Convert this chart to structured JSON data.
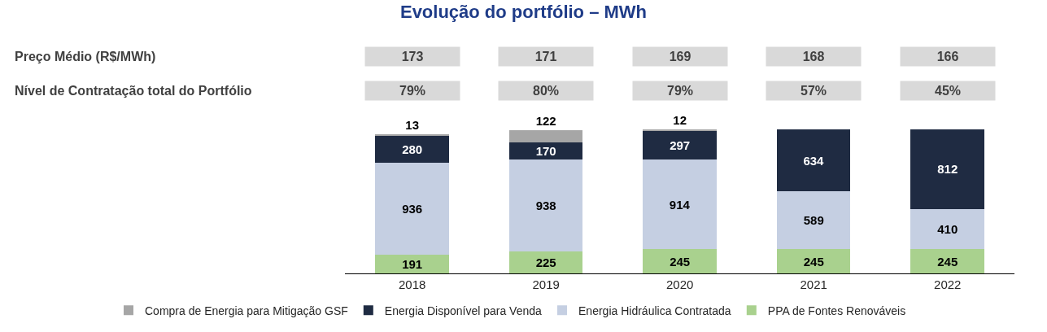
{
  "chart_data": {
    "type": "bar",
    "title": "Evolução do portfólio – MWh",
    "stacked": true,
    "data_labels": true,
    "legend": "bottom",
    "grid": false,
    "categories": [
      "2018",
      "2019",
      "2020",
      "2021",
      "2022"
    ],
    "series": [
      {
        "name": "PPA de Fontes Renováveis",
        "color": "#a9d18e",
        "values": [
          191,
          225,
          245,
          245,
          245
        ]
      },
      {
        "name": "Energia Hidráulica Contratada",
        "color": "#c5cfe2",
        "values": [
          936,
          938,
          914,
          589,
          410
        ]
      },
      {
        "name": "Energia Disponível para Venda",
        "color": "#1f2b42",
        "values": [
          280,
          170,
          297,
          634,
          812
        ]
      },
      {
        "name": "Compra de Energia para Mitigação GSF",
        "color": "#a6a6a6",
        "values": [
          13,
          122,
          12,
          null,
          null
        ]
      }
    ],
    "annotations": [
      "Preço Médio (R$/MWh)",
      "173",
      "171",
      "169",
      "168",
      "166",
      "Nível de Contratação total do Portfólio",
      "79%",
      "80%",
      "79%",
      "57%",
      "45%"
    ]
  }
}
